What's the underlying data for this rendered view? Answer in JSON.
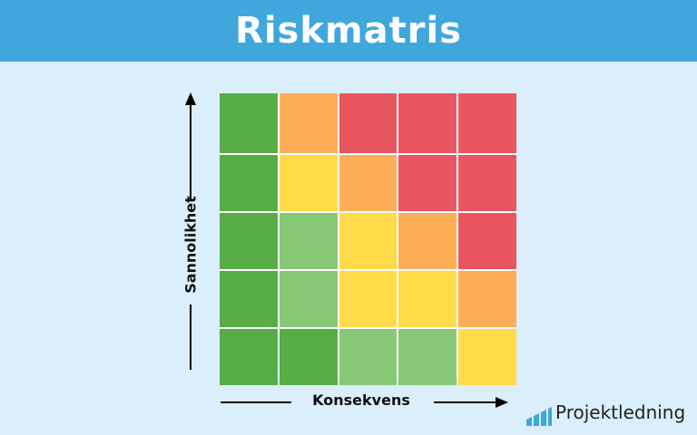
{
  "header": {
    "title": "Riskmatris"
  },
  "axes": {
    "y_label": "Sannolikhet",
    "x_label": "Konsekvens"
  },
  "matrix": {
    "rows": [
      [
        "#56ae45",
        "#ffae58",
        "#ea5660",
        "#ea5660",
        "#ea5660"
      ],
      [
        "#56ae45",
        "#ffdb4a",
        "#ffae58",
        "#ea5660",
        "#ea5660"
      ],
      [
        "#56ae45",
        "#87c877",
        "#ffdb4a",
        "#ffae58",
        "#ea5660"
      ],
      [
        "#56ae45",
        "#87c877",
        "#ffdb4a",
        "#ffdb4a",
        "#ffae58"
      ],
      [
        "#56ae45",
        "#56ae45",
        "#87c877",
        "#87c877",
        "#ffdb4a"
      ]
    ]
  },
  "logo": {
    "text": "Projektledning",
    "icon": "bar-chart-icon",
    "color": "#3fa7dc"
  }
}
